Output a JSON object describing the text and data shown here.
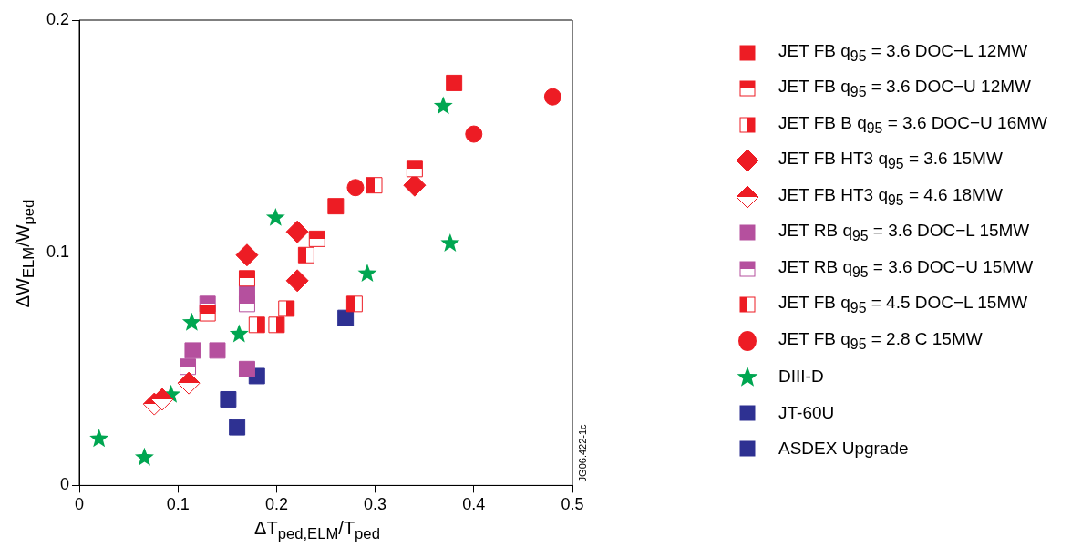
{
  "chart_data": {
    "type": "scatter",
    "xlabel": "ΔT$_{ped,ELM}$/T$_{ped}$",
    "ylabel": "ΔW$_{ELM}$/W$_{ped}$",
    "xlim": [
      0,
      0.5
    ],
    "xticks": [
      0,
      0.1,
      0.2,
      0.3,
      0.4,
      0.5
    ],
    "ylim": [
      0,
      0.2
    ],
    "yticks": [
      0,
      0.1,
      0.2
    ],
    "grid": false,
    "legend": "right",
    "annotations": [
      "JG06.422-1c"
    ],
    "series": [
      {
        "name": "JET FB q$_{95}$ = 3.6 DOC−L 12MW",
        "color": "#ed1c24",
        "marker": "square",
        "x": [
          0.38,
          0.26
        ],
        "values": [
          0.173,
          0.12
        ]
      },
      {
        "name": "JET FB q$_{95}$ = 3.6 DOC−U 12MW",
        "color": "#ed1c24",
        "marker": "square",
        "x": [
          0.34,
          0.241,
          0.17,
          0.13
        ],
        "values": [
          0.136,
          0.106,
          0.089,
          0.074
        ]
      },
      {
        "name": "JET FB B q$_{95}$ = 3.6 DOC−U 16MW",
        "color": "#ed1c24",
        "marker": "square",
        "x": [
          0.18,
          0.2,
          0.21
        ],
        "values": [
          0.069,
          0.069,
          0.076
        ]
      },
      {
        "name": "JET FB HT3 q$_{95}$ = 3.6 15MW",
        "color": "#ed1c24",
        "marker": "diamond",
        "x": [
          0.34,
          0.221,
          0.17,
          0.221
        ],
        "values": [
          0.129,
          0.109,
          0.099,
          0.088
        ]
      },
      {
        "name": "JET FB HT3 q$_{95}$ = 4.6 18MW",
        "color": "#ed1c24",
        "marker": "diamond",
        "x": [
          0.076,
          0.084,
          0.111
        ],
        "values": [
          0.035,
          0.037,
          0.044
        ]
      },
      {
        "name": "JET RB q$_{95}$ = 3.6 DOC−L 15MW",
        "color": "#b5509e",
        "marker": "square",
        "x": [
          0.115,
          0.14,
          0.17,
          0.17
        ],
        "values": [
          0.058,
          0.058,
          0.05,
          0.083
        ]
      },
      {
        "name": "JET RB q$_{95}$ = 3.6 DOC−U 15MW",
        "color": "#b5509e",
        "marker": "square",
        "x": [
          0.13,
          0.11,
          0.17
        ],
        "values": [
          0.078,
          0.051,
          0.078
        ]
      },
      {
        "name": "JET FB q$_{95}$ = 4.5 DOC−L 15MW",
        "color": "#ed1c24",
        "marker": "square",
        "x": [
          0.23,
          0.279,
          0.299
        ],
        "values": [
          0.099,
          0.078,
          0.129
        ]
      },
      {
        "name": "JET FB q$_{95}$ = 2.8 C 15MW",
        "color": "#ed1c24",
        "marker": "circle",
        "x": [
          0.48,
          0.4,
          0.28
        ],
        "values": [
          0.167,
          0.151,
          0.128
        ]
      },
      {
        "name": "DIII-D",
        "color": "#00a651",
        "marker": "star",
        "x": [
          0.02,
          0.066,
          0.093,
          0.114,
          0.162,
          0.199,
          0.292,
          0.376,
          0.369
        ],
        "values": [
          0.02,
          0.012,
          0.039,
          0.07,
          0.065,
          0.115,
          0.091,
          0.104,
          0.163
        ]
      },
      {
        "name": "JT-60U",
        "color": "#2e3192",
        "marker": "square",
        "x": [
          0.151,
          0.16,
          0.18,
          0.27
        ],
        "values": [
          0.037,
          0.025,
          0.047,
          0.072
        ]
      },
      {
        "name": "ASDEX Upgrade",
        "color": "#2e3192",
        "marker": "square"
      }
    ]
  }
}
